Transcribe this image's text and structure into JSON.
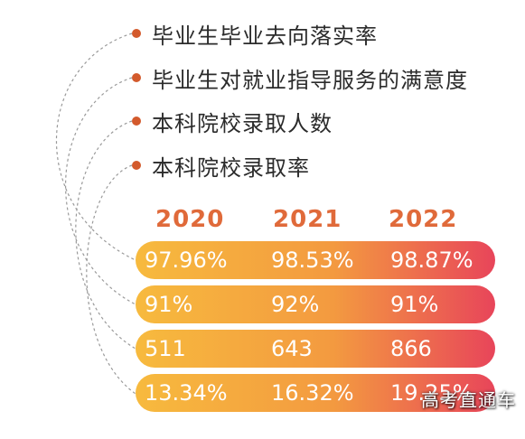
{
  "colors": {
    "accent": "#e06a3a",
    "dot": "#d35a2c",
    "bar_start": "#f7ba3e",
    "bar_end": "#e8455a",
    "connector": "#9a9a9a"
  },
  "legend": {
    "items": [
      {
        "label": "毕业生毕业去向落实率"
      },
      {
        "label": "毕业生对就业指导服务的满意度"
      },
      {
        "label": "本科院校录取人数"
      },
      {
        "label": "本科院校录取率"
      }
    ]
  },
  "table": {
    "years": [
      "2020",
      "2021",
      "2022"
    ],
    "rows": [
      {
        "values": [
          "97.96%",
          "98.53%",
          "98.87%"
        ]
      },
      {
        "values": [
          "91%",
          "92%",
          "91%"
        ]
      },
      {
        "values": [
          "511",
          "643",
          "866"
        ]
      },
      {
        "values": [
          "13.34%",
          "16.32%",
          "19.25%"
        ]
      }
    ]
  },
  "watermark": "高考直通车"
}
